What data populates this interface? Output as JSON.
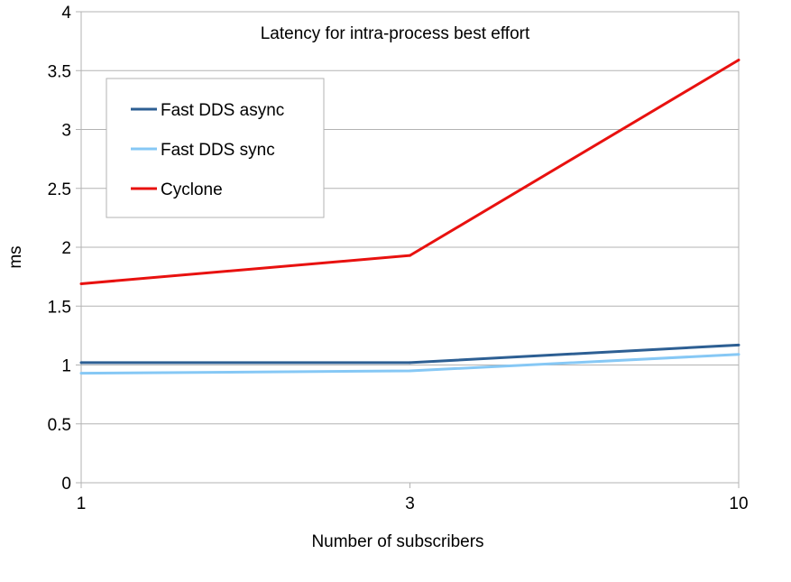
{
  "chart_data": {
    "type": "line",
    "title": "Latency for intra-process best effort",
    "xlabel": "Number of subscribers",
    "ylabel": "ms",
    "categories": [
      "1",
      "3",
      "10"
    ],
    "ylim": [
      0,
      4
    ],
    "yticks": [
      "0",
      "0.5",
      "1",
      "1.5",
      "2",
      "2.5",
      "3",
      "3.5",
      "4"
    ],
    "grid": true,
    "legend_position": "top-left",
    "series": [
      {
        "name": "Fast DDS async",
        "color": "#2d5f93",
        "values": [
          1.02,
          1.02,
          1.17
        ]
      },
      {
        "name": "Fast DDS sync",
        "color": "#86c8f5",
        "values": [
          0.93,
          0.95,
          1.09
        ]
      },
      {
        "name": "Cyclone",
        "color": "#e8110f",
        "values": [
          1.69,
          1.93,
          3.59
        ]
      }
    ]
  }
}
